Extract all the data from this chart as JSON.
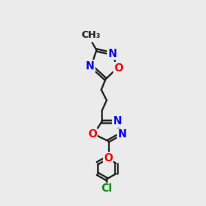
{
  "background_color": "#ebebeb",
  "bond_color": "#1a1a1a",
  "bond_width": 1.8,
  "atom_colors": {
    "N": "#0000ee",
    "O": "#ee0000",
    "Cl": "#008800",
    "C": "#1a1a1a"
  },
  "font_size_atom": 11,
  "font_size_methyl": 10,
  "font_size_cl": 11
}
